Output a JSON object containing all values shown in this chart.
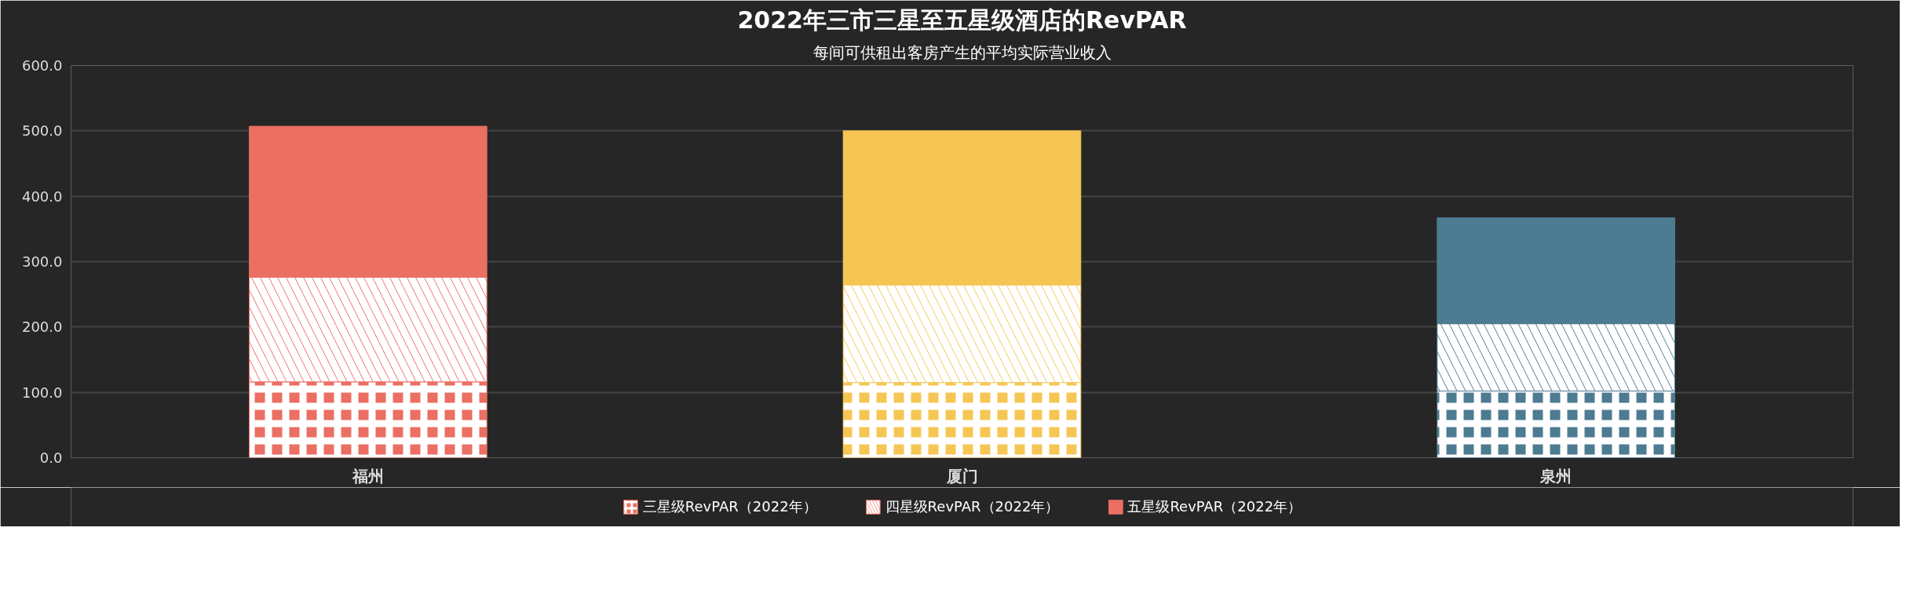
{
  "chart_data": {
    "type": "bar",
    "title": "2022年三市三星至五星级酒店的RevPAR",
    "subtitle": "每间可供租出客房产生的平均实际营业收入",
    "categories": [
      "福州",
      "厦门",
      "泉州"
    ],
    "stacked": true,
    "series": [
      {
        "name": "三星级RevPAR（2022年）",
        "color": "#eb6f62",
        "colors": [
          "#eb6f62",
          "#f6c655",
          "#4d7b91"
        ],
        "values": [
          116,
          115,
          102
        ]
      },
      {
        "name": "四星级RevPAR（2022年）",
        "color": "#eb6f62",
        "colors": [
          "#eb6f62",
          "#f6c655",
          "#4d7b91"
        ],
        "values": [
          160,
          149,
          103
        ]
      },
      {
        "name": "五星级RevPAR（2022年）",
        "color": "#eb6f62",
        "colors": [
          "#eb6f62",
          "#f6c655",
          "#4d7b91"
        ],
        "values": [
          231,
          236,
          162
        ]
      }
    ],
    "ylim": [
      0,
      600
    ],
    "yticks": [
      {
        "value": 0,
        "label": "0.0"
      },
      {
        "value": 100,
        "label": "100.0"
      },
      {
        "value": 200,
        "label": "200.0"
      },
      {
        "value": 300,
        "label": "300.0"
      },
      {
        "value": 400,
        "label": "400.0"
      },
      {
        "value": 500,
        "label": "500.0"
      },
      {
        "value": 600,
        "label": "600.0"
      }
    ],
    "grid": "y",
    "legend": "bottom"
  }
}
